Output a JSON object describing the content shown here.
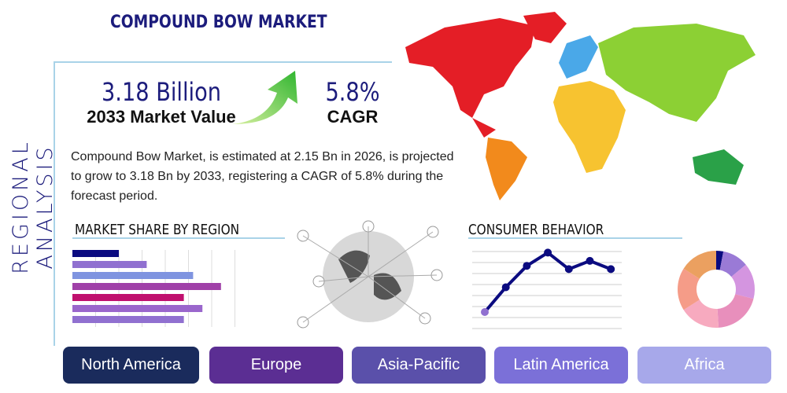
{
  "title": "COMPOUND BOW MARKET",
  "side_title": "REGIONAL ANALYSIS",
  "market_value": {
    "value": "3.18 Billion",
    "label": "2033 Market Value"
  },
  "cagr": {
    "value": "5.8%",
    "label": "CAGR"
  },
  "description": "Compound Bow Market, is estimated at 2.15 Bn in 2026, is projected to grow to 3.18 Bn by 2033, registering a CAGR of 5.8% during the forecast period.",
  "sections": {
    "market_share": "MARKET SHARE BY REGION",
    "consumer": "CONSUMER BEHAVIOR"
  },
  "chart_data": [
    {
      "type": "bar",
      "orientation": "horizontal",
      "values": [
        2,
        3.2,
        5.2,
        6.4,
        4.8,
        5.6,
        4.8
      ],
      "colors": [
        "#0b0b80",
        "#9070d0",
        "#7f94e0",
        "#a040a8",
        "#c0106e",
        "#9a66cc",
        "#9070d0"
      ],
      "grid": true
    },
    {
      "type": "line",
      "values": [
        1,
        2.5,
        3.8,
        4.6,
        3.6,
        4.1,
        3.6
      ],
      "color": "#0b0b80",
      "grid": true
    },
    {
      "type": "pie",
      "donut": true,
      "values": [
        3,
        11,
        15,
        20,
        17,
        18,
        16
      ],
      "colors": [
        "#0b0b80",
        "#9a7ad6",
        "#d495e0",
        "#e88fbc",
        "#f7aabf",
        "#f59c88",
        "#eba060"
      ]
    }
  ],
  "regions": [
    {
      "label": "North America",
      "color": "#1a2b5c"
    },
    {
      "label": "Europe",
      "color": "#5b2e93"
    },
    {
      "label": "Asia-Pacific",
      "color": "#5a50aa"
    },
    {
      "label": "Latin America",
      "color": "#7b70d8"
    },
    {
      "label": "Africa",
      "color": "#a7a8ea"
    }
  ]
}
